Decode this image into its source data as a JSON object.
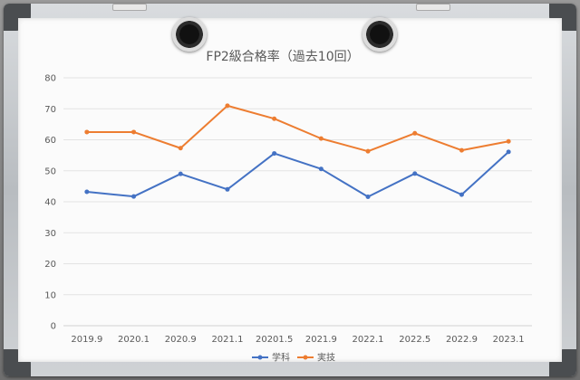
{
  "chart_data": {
    "type": "line",
    "title": "FP2級合格率（過去10回）",
    "categories": [
      "2019.9",
      "2020.1",
      "2020.9",
      "2021.1",
      "20201.5",
      "2021.9",
      "2022.1",
      "2022.5",
      "2022.9",
      "2023.1"
    ],
    "series": [
      {
        "name": "学科",
        "color": "#4472c4",
        "values": [
          43.2,
          41.7,
          49.0,
          44.0,
          55.6,
          50.6,
          41.6,
          49.1,
          42.3,
          56.1
        ]
      },
      {
        "name": "実技",
        "color": "#ed7d31",
        "values": [
          62.5,
          62.5,
          57.3,
          71.0,
          66.8,
          60.4,
          56.3,
          62.1,
          56.6,
          59.5
        ]
      }
    ],
    "yticks": [
      0,
      10,
      20,
      30,
      40,
      50,
      60,
      70,
      80
    ],
    "ylim": [
      0,
      80
    ],
    "grid": true,
    "legend_position": "bottom"
  }
}
